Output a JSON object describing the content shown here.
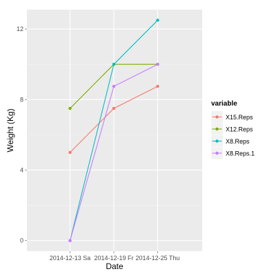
{
  "chart_data": {
    "type": "line",
    "xlabel": "Date",
    "ylabel": "Weight (Kg)",
    "categories": [
      "2014-12-13 Sa",
      "2014-12-19 Fr",
      "2014-12-25 Thu"
    ],
    "ylim": [
      -0.6,
      13.1
    ],
    "yticks": [
      0,
      4,
      8,
      12
    ],
    "grid": true,
    "legend": {
      "title": "variable",
      "position": "right"
    },
    "series": [
      {
        "name": "X15.Reps",
        "color": "#F8766D",
        "values": [
          5,
          7.5,
          8.75
        ]
      },
      {
        "name": "X12.Reps",
        "color": "#7CAE00",
        "values": [
          7.5,
          10,
          10
        ]
      },
      {
        "name": "X8.Reps",
        "color": "#00BFC4",
        "values": [
          0,
          10,
          12.5
        ]
      },
      {
        "name": "X8.Reps.1",
        "color": "#C77CFF",
        "values": [
          0,
          8.75,
          10
        ]
      }
    ]
  }
}
